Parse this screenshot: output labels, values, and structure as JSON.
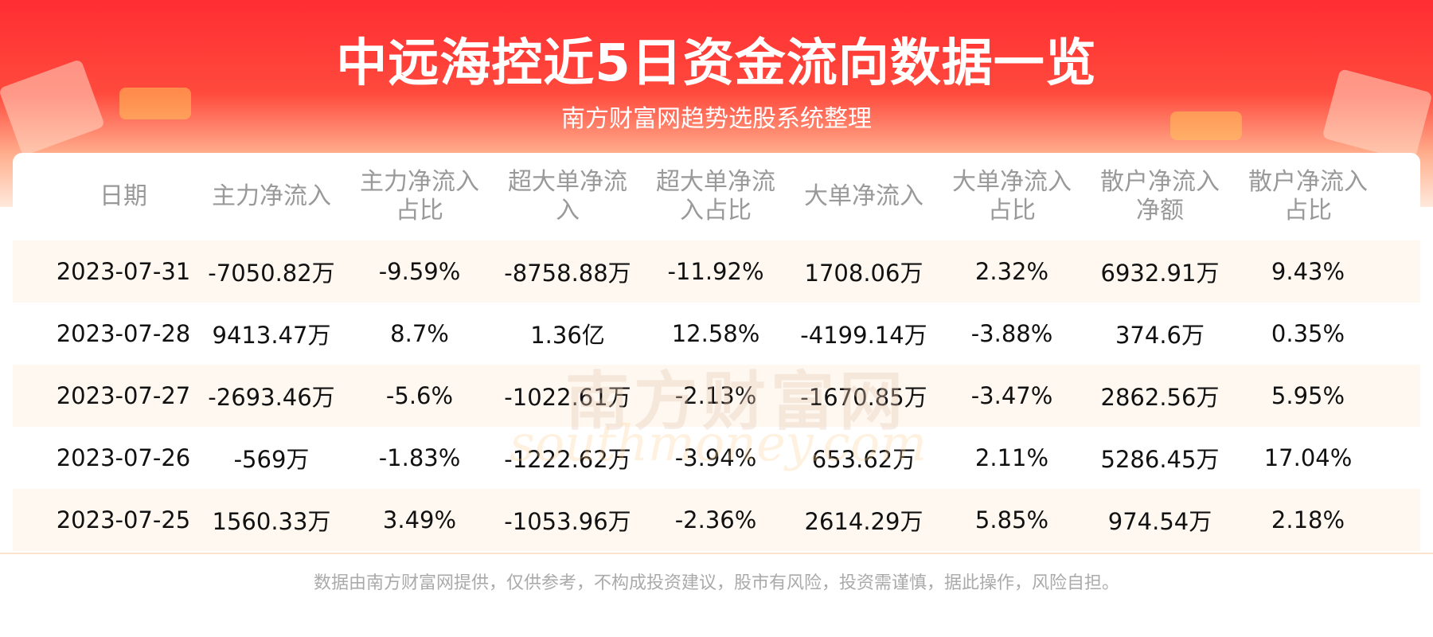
{
  "header": {
    "title": "中远海控近5日资金流向数据一览",
    "subtitle": "南方财富网趋势选股系统整理"
  },
  "table": {
    "columns": [
      "日期",
      "主力净流入",
      "主力净流入占比",
      "超大单净流入",
      "超大单净流入占比",
      "大单净流入",
      "大单净流入占比",
      "散户净流入净额",
      "散户净流入占比"
    ],
    "rows": [
      [
        "2023-07-31",
        "-7050.82万",
        "-9.59%",
        "-8758.88万",
        "-11.92%",
        "1708.06万",
        "2.32%",
        "6932.91万",
        "9.43%"
      ],
      [
        "2023-07-28",
        "9413.47万",
        "8.7%",
        "1.36亿",
        "12.58%",
        "-4199.14万",
        "-3.88%",
        "374.6万",
        "0.35%"
      ],
      [
        "2023-07-27",
        "-2693.46万",
        "-5.6%",
        "-1022.61万",
        "-2.13%",
        "-1670.85万",
        "-3.47%",
        "2862.56万",
        "5.95%"
      ],
      [
        "2023-07-26",
        "-569万",
        "-1.83%",
        "-1222.62万",
        "-3.94%",
        "653.62万",
        "2.11%",
        "5286.45万",
        "17.04%"
      ],
      [
        "2023-07-25",
        "1560.33万",
        "3.49%",
        "-1053.96万",
        "-2.36%",
        "2614.29万",
        "5.85%",
        "974.54万",
        "2.18%"
      ]
    ]
  },
  "watermark": {
    "name": "南方财富网",
    "site": "southmoney.com"
  },
  "footer": {
    "disclaimer": "数据由南方财富网提供，仅供参考，不构成投资建议，股市有风险，投资需谨慎，据此操作，风险自担。"
  }
}
